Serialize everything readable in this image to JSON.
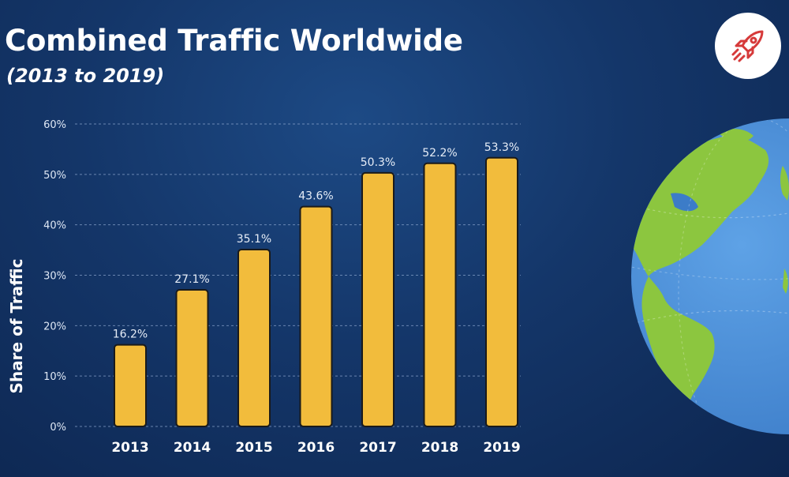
{
  "header": {
    "title": "Combined Traffic Worldwide",
    "subtitle": "(2013 to 2019)"
  },
  "icons": {
    "badge": "rocket-icon",
    "illustration": "globe-icon"
  },
  "colors": {
    "background": "#143669",
    "bar": "#f2bc3c",
    "bar_outline": "#1a1a1a",
    "rocket": "#d63a3a",
    "ocean": "#4b8fd8",
    "land": "#8cc63f"
  },
  "chart_data": {
    "type": "bar",
    "title": "",
    "xlabel": "",
    "ylabel": "Share of Traffic",
    "categories": [
      "2013",
      "2014",
      "2015",
      "2016",
      "2017",
      "2018",
      "2019"
    ],
    "values": [
      16.2,
      27.1,
      35.1,
      43.6,
      50.3,
      52.2,
      53.3
    ],
    "data_labels": [
      "16.2%",
      "27.1%",
      "35.1%",
      "43.6%",
      "50.3%",
      "52.2%",
      "53.3%"
    ],
    "ylim": [
      0,
      60
    ],
    "yticks": [
      0,
      10,
      20,
      30,
      40,
      50,
      60
    ],
    "ytick_labels": [
      "0%",
      "10%",
      "20%",
      "30%",
      "40%",
      "50%",
      "60%"
    ],
    "grid": true,
    "legend": "none"
  }
}
